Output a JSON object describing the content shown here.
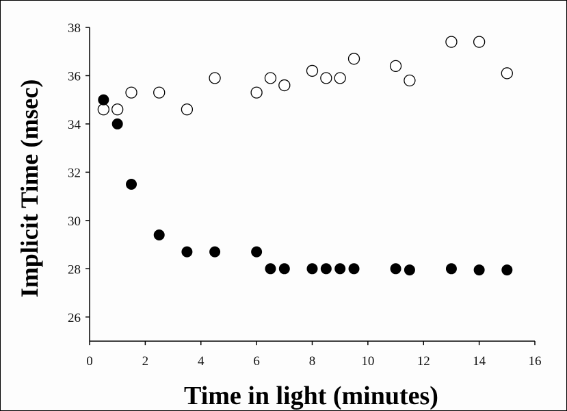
{
  "chart_data": {
    "type": "scatter",
    "title": "",
    "xlabel": "Time in light (minutes)",
    "ylabel": "Implicit Time (msec)",
    "xlim": [
      0,
      16
    ],
    "ylim": [
      25,
      38
    ],
    "x_ticks": [
      0,
      2,
      4,
      6,
      8,
      10,
      12,
      14,
      16
    ],
    "y_ticks": [
      26,
      28,
      30,
      32,
      34,
      36,
      38
    ],
    "grid": false,
    "legend": "none",
    "series": [
      {
        "marker": "open-circle",
        "color": "#000000",
        "points": [
          {
            "x": 0.5,
            "y": 34.6
          },
          {
            "x": 1.0,
            "y": 34.6
          },
          {
            "x": 1.5,
            "y": 35.3
          },
          {
            "x": 2.5,
            "y": 35.3
          },
          {
            "x": 3.5,
            "y": 34.6
          },
          {
            "x": 4.5,
            "y": 35.9
          },
          {
            "x": 6.0,
            "y": 35.3
          },
          {
            "x": 6.5,
            "y": 35.9
          },
          {
            "x": 7.0,
            "y": 35.6
          },
          {
            "x": 8.0,
            "y": 36.2
          },
          {
            "x": 8.5,
            "y": 35.9
          },
          {
            "x": 9.0,
            "y": 35.9
          },
          {
            "x": 9.5,
            "y": 36.7
          },
          {
            "x": 11.0,
            "y": 36.4
          },
          {
            "x": 11.5,
            "y": 35.8
          },
          {
            "x": 13.0,
            "y": 37.4
          },
          {
            "x": 14.0,
            "y": 37.4
          },
          {
            "x": 15.0,
            "y": 36.1
          }
        ]
      },
      {
        "marker": "filled-circle",
        "color": "#000000",
        "points": [
          {
            "x": 0.5,
            "y": 35.0
          },
          {
            "x": 1.0,
            "y": 34.0
          },
          {
            "x": 1.5,
            "y": 31.5
          },
          {
            "x": 2.5,
            "y": 29.4
          },
          {
            "x": 3.5,
            "y": 28.7
          },
          {
            "x": 4.5,
            "y": 28.7
          },
          {
            "x": 6.0,
            "y": 28.7
          },
          {
            "x": 6.5,
            "y": 28.0
          },
          {
            "x": 7.0,
            "y": 28.0
          },
          {
            "x": 8.0,
            "y": 28.0
          },
          {
            "x": 8.5,
            "y": 28.0
          },
          {
            "x": 9.0,
            "y": 28.0
          },
          {
            "x": 9.5,
            "y": 28.0
          },
          {
            "x": 11.0,
            "y": 28.0
          },
          {
            "x": 11.5,
            "y": 27.95
          },
          {
            "x": 13.0,
            "y": 28.0
          },
          {
            "x": 14.0,
            "y": 27.95
          },
          {
            "x": 15.0,
            "y": 27.95
          }
        ]
      }
    ]
  }
}
